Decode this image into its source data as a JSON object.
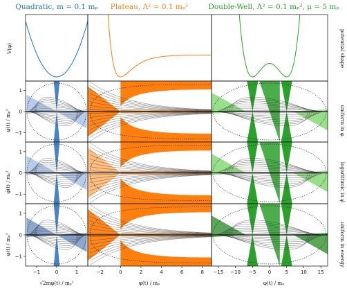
{
  "figure": {
    "columns": [
      {
        "title": "Quadratic, m = 0.1 mₚ",
        "color": "#1f77b4",
        "fill": "#4a83c4",
        "light": "#aec7e8",
        "model": "quadratic",
        "xlim": [
          -1.55,
          1.55
        ],
        "xticks": [
          -1,
          0,
          1
        ],
        "xlabel": "√2mφ(t) / mₚ²"
      },
      {
        "title": "Plateau, Λ² = 0.1 mₚ²",
        "color": "#ff7f0e",
        "fill": "#ff7f0e",
        "light": "#ffbb78",
        "model": "plateau",
        "xlim": [
          -3.2,
          8.9
        ],
        "xticks": [
          -2,
          0,
          2,
          4,
          6,
          8
        ],
        "xlabel": "φ(t) / mₚ"
      },
      {
        "title": "Double-Well, Λ² = 0.1 mₚ², μ = 5 mₚ",
        "color": "#2ca02c",
        "fill": "#2ca02c",
        "light": "#98df8a",
        "model": "doublewell",
        "xlim": [
          -17,
          17
        ],
        "xticks": [
          -15,
          -10,
          -5,
          0,
          5,
          10,
          15
        ],
        "xlabel": "φ(t) / mₚ"
      }
    ],
    "rows": [
      {
        "right_label": "potential shape",
        "ylabel": "V(φ)"
      },
      {
        "right_label": "uniform in φ",
        "ylabel": "φ̇(t) / mₚ²"
      },
      {
        "right_label": "logarithmic in φ̇",
        "ylabel": "φ̇(t) / mₚ²"
      },
      {
        "right_label": "uniform in energy",
        "ylabel": "φ̇(t) / mₚ²"
      }
    ]
  },
  "chart_data": {
    "type": "line",
    "yticks_phase": [
      -1,
      0,
      1
    ],
    "ylim_phase": [
      -1.45,
      1.45
    ],
    "panels": "3 inflationary models (columns) × 4 rows: potential V(φ) and phase-space trajectories for three initial-condition samplings",
    "grid": true
  }
}
